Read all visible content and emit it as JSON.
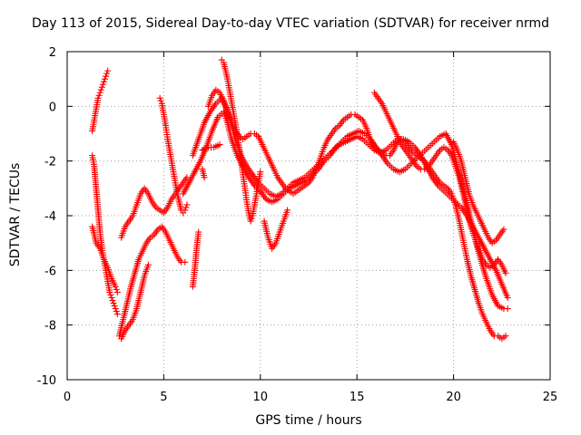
{
  "chart_data": {
    "type": "scatter",
    "title": "Day 113 of 2015, Sidereal Day-to-day VTEC variation (SDTVAR) for receiver nrmd",
    "xlabel": "GPS time / hours",
    "ylabel": "SDTVAR / TECUs",
    "xlim": [
      0,
      25
    ],
    "ylim": [
      -10,
      2
    ],
    "x_ticks": [
      0,
      5,
      10,
      15,
      20,
      25
    ],
    "y_ticks": [
      -10,
      -8,
      -6,
      -4,
      -2,
      0,
      2
    ],
    "grid": true,
    "marker": "+",
    "color": "#ff0000",
    "series": [
      {
        "x": [
          1.3,
          1.4,
          1.5,
          1.6,
          1.7,
          1.8,
          1.9,
          2.0,
          2.1
        ],
        "y": [
          -0.9,
          -0.5,
          -0.1,
          0.3,
          0.5,
          0.7,
          0.9,
          1.1,
          1.3
        ]
      },
      {
        "x": [
          1.3,
          1.4,
          1.5,
          1.6,
          1.7,
          1.8,
          1.9,
          2.0,
          2.1,
          2.2,
          2.3,
          2.4,
          2.5,
          2.6
        ],
        "y": [
          -1.8,
          -2.2,
          -3.0,
          -3.8,
          -4.6,
          -5.2,
          -5.6,
          -6.0,
          -6.4,
          -6.8,
          -7.0,
          -7.2,
          -7.4,
          -7.6
        ]
      },
      {
        "x": [
          1.3,
          1.5,
          1.7,
          1.9,
          2.1,
          2.3,
          2.5,
          2.6
        ],
        "y": [
          -4.4,
          -5.0,
          -5.2,
          -5.6,
          -5.9,
          -6.3,
          -6.6,
          -6.8
        ]
      },
      {
        "x": [
          2.7,
          2.9,
          3.1,
          3.3,
          3.5,
          3.7,
          3.9,
          4.1,
          4.3,
          4.5,
          4.7,
          4.9,
          5.1,
          5.3,
          5.5,
          5.7,
          5.9,
          6.1
        ],
        "y": [
          -8.4,
          -7.8,
          -7.2,
          -6.6,
          -6.1,
          -5.6,
          -5.3,
          -5.0,
          -4.8,
          -4.7,
          -4.5,
          -4.4,
          -4.6,
          -4.9,
          -5.2,
          -5.5,
          -5.7,
          -5.7
        ]
      },
      {
        "x": [
          2.8,
          3.0,
          3.2,
          3.4,
          3.6,
          3.8,
          4.0,
          4.2,
          4.4,
          4.6,
          4.8,
          5.0,
          5.2,
          5.4,
          5.6,
          5.8,
          6.0,
          6.2
        ],
        "y": [
          -4.8,
          -4.4,
          -4.2,
          -4.0,
          -3.6,
          -3.2,
          -3.0,
          -3.2,
          -3.5,
          -3.7,
          -3.8,
          -3.9,
          -3.7,
          -3.4,
          -3.2,
          -3.0,
          -2.8,
          -2.6
        ]
      },
      {
        "x": [
          2.8,
          3.0,
          3.2,
          3.4,
          3.6,
          3.8,
          4.0,
          4.2
        ],
        "y": [
          -8.5,
          -8.2,
          -8.0,
          -7.8,
          -7.4,
          -6.8,
          -6.2,
          -5.8
        ]
      },
      {
        "x": [
          4.8,
          4.9,
          5.0,
          5.1,
          5.2,
          5.3,
          5.4,
          5.5,
          5.6,
          5.7,
          5.8,
          5.9,
          6.0,
          6.1,
          6.2
        ],
        "y": [
          0.3,
          0.1,
          -0.3,
          -0.7,
          -1.2,
          -1.6,
          -2.0,
          -2.4,
          -2.8,
          -3.2,
          -3.5,
          -3.8,
          -3.9,
          -3.8,
          -3.6
        ]
      },
      {
        "x": [
          6.5,
          6.6,
          6.7,
          6.8
        ],
        "y": [
          -6.6,
          -6.0,
          -5.2,
          -4.6
        ]
      },
      {
        "x": [
          6.5,
          6.8,
          7.1,
          7.4,
          7.7,
          8.0,
          8.2,
          8.4,
          8.6,
          8.8,
          9.0,
          9.3,
          9.6,
          9.9,
          10.2,
          10.5,
          10.8,
          11.1,
          11.4,
          11.7,
          12.0,
          12.3,
          12.6,
          12.9,
          13.2,
          13.5,
          13.8,
          14.1,
          14.4,
          14.7,
          15.0,
          15.3,
          15.6,
          15.9,
          16.2,
          16.5,
          16.8,
          17.1,
          17.4,
          17.7,
          18.0,
          18.3,
          18.6,
          18.9,
          19.2,
          19.5,
          19.8,
          20.1,
          20.4,
          20.7,
          21.0,
          21.3,
          21.6,
          21.9,
          22.2,
          22.5,
          22.8
        ],
        "y": [
          -1.8,
          -1.2,
          -0.6,
          -0.2,
          0.1,
          0.3,
          0.0,
          -0.4,
          -0.9,
          -1.4,
          -1.8,
          -2.2,
          -2.5,
          -2.8,
          -3.0,
          -3.2,
          -3.3,
          -3.2,
          -3.0,
          -2.8,
          -2.7,
          -2.6,
          -2.4,
          -2.2,
          -2.0,
          -1.8,
          -1.6,
          -1.4,
          -1.3,
          -1.2,
          -1.1,
          -1.2,
          -1.4,
          -1.6,
          -1.7,
          -1.6,
          -1.4,
          -1.2,
          -1.2,
          -1.3,
          -1.5,
          -1.8,
          -2.2,
          -2.6,
          -2.9,
          -3.1,
          -3.3,
          -3.5,
          -3.7,
          -4.0,
          -4.4,
          -4.8,
          -5.2,
          -5.6,
          -6.0,
          -6.5,
          -7.0
        ]
      },
      {
        "x": [
          6.0,
          6.3,
          6.6,
          6.9,
          7.2,
          7.5,
          7.8,
          8.1,
          8.3,
          8.5,
          8.8,
          9.1,
          9.4,
          9.7,
          10.0,
          10.3,
          10.6,
          10.9,
          11.2,
          11.5,
          11.8,
          12.1,
          12.4,
          12.7,
          13.0,
          13.3,
          13.6,
          13.9,
          14.2,
          14.5,
          14.8,
          15.1,
          15.4,
          15.7,
          16.0,
          16.3,
          16.6,
          16.9,
          17.2,
          17.5,
          17.8,
          18.1,
          18.4,
          18.7,
          19.0,
          19.3,
          19.6,
          19.9,
          20.2,
          20.5,
          20.8,
          21.1,
          21.4,
          21.7,
          22.0,
          22.3,
          22.6,
          22.8
        ],
        "y": [
          -3.2,
          -2.8,
          -2.4,
          -2.0,
          -1.5,
          -0.9,
          -0.4,
          -0.2,
          -0.6,
          -1.2,
          -1.8,
          -2.2,
          -2.6,
          -2.9,
          -3.1,
          -3.4,
          -3.5,
          -3.4,
          -3.2,
          -3.0,
          -2.9,
          -2.8,
          -2.7,
          -2.5,
          -2.3,
          -2.0,
          -1.8,
          -1.5,
          -1.3,
          -1.1,
          -1.0,
          -0.9,
          -1.0,
          -1.2,
          -1.5,
          -1.8,
          -2.1,
          -2.3,
          -2.4,
          -2.3,
          -2.1,
          -1.9,
          -1.7,
          -1.5,
          -1.3,
          -1.1,
          -1.0,
          -1.4,
          -2.2,
          -3.0,
          -3.9,
          -4.8,
          -5.6,
          -6.3,
          -6.9,
          -7.3,
          -7.4,
          -7.4
        ]
      },
      {
        "x": [
          7.3,
          7.5,
          7.7,
          7.9,
          8.1,
          8.3,
          8.5,
          8.7,
          8.9,
          9.1,
          9.3,
          9.5,
          9.7,
          9.9,
          10.1,
          10.3,
          10.5,
          10.7,
          10.9,
          11.1,
          11.3,
          11.5,
          11.7,
          11.9,
          12.1,
          12.3,
          12.5,
          12.7,
          12.9,
          13.1,
          13.3,
          13.5,
          13.7,
          13.9,
          14.1,
          14.3,
          14.5,
          14.7,
          14.9,
          15.1,
          15.3,
          15.5,
          15.7,
          15.9,
          16.1,
          16.3,
          16.5,
          16.7,
          16.9,
          17.1,
          17.3,
          17.5,
          17.7,
          17.9,
          18.1,
          18.3,
          18.5,
          18.7,
          18.9,
          19.1,
          19.3,
          19.5,
          19.7,
          19.9,
          20.1,
          20.3,
          20.5,
          20.7,
          20.9,
          21.1,
          21.3,
          21.5,
          21.7,
          21.9,
          22.1,
          22.3,
          22.5,
          22.7
        ],
        "y": [
          0.0,
          0.4,
          0.6,
          0.5,
          0.2,
          -0.2,
          -0.6,
          -0.9,
          -1.1,
          -1.2,
          -1.1,
          -1.0,
          -1.0,
          -1.1,
          -1.4,
          -1.7,
          -2.0,
          -2.3,
          -2.6,
          -2.8,
          -3.0,
          -3.1,
          -3.2,
          -3.1,
          -3.0,
          -2.9,
          -2.8,
          -2.6,
          -2.3,
          -1.9,
          -1.5,
          -1.2,
          -1.0,
          -0.8,
          -0.7,
          -0.5,
          -0.4,
          -0.3,
          -0.3,
          -0.4,
          -0.5,
          -0.8,
          -1.2,
          -1.5,
          -1.6,
          -1.7,
          -1.8,
          -1.8,
          -1.6,
          -1.3,
          -1.2,
          -1.3,
          -1.5,
          -1.7,
          -1.8,
          -1.9,
          -2.0,
          -2.2,
          -2.4,
          -2.6,
          -2.8,
          -2.9,
          -3.0,
          -3.2,
          -3.6,
          -4.2,
          -4.9,
          -5.6,
          -6.2,
          -6.7,
          -7.2,
          -7.6,
          -7.9,
          -8.2,
          -8.4,
          -8.4,
          -8.5,
          -8.4
        ]
      },
      {
        "x": [
          8.0,
          8.1,
          8.2,
          8.3,
          8.4,
          8.5,
          8.6,
          8.7,
          8.8,
          8.9,
          9.0,
          9.1,
          9.2,
          9.3,
          9.4,
          9.5,
          9.6,
          9.7,
          9.8,
          9.9,
          10.0
        ],
        "y": [
          1.7,
          1.6,
          1.3,
          1.0,
          0.6,
          0.2,
          -0.2,
          -0.6,
          -1.0,
          -1.5,
          -2.0,
          -2.5,
          -3.0,
          -3.5,
          -3.9,
          -4.2,
          -4.0,
          -3.6,
          -3.2,
          -2.8,
          -2.4
        ]
      },
      {
        "x": [
          15.9,
          16.1,
          16.3,
          16.5,
          16.7,
          16.9,
          17.1,
          17.3,
          17.5,
          17.7,
          17.9,
          18.1,
          18.3,
          18.5,
          18.7,
          18.9,
          19.1,
          19.3,
          19.5,
          19.7,
          19.9,
          20.1,
          20.3,
          20.5,
          20.7,
          20.9,
          21.1,
          21.3,
          21.5,
          21.7,
          21.9,
          22.1,
          22.3,
          22.5,
          22.7
        ],
        "y": [
          0.5,
          0.3,
          0.1,
          -0.2,
          -0.5,
          -0.8,
          -1.1,
          -1.4,
          -1.6,
          -1.8,
          -2.0,
          -2.2,
          -2.3,
          -2.3,
          -2.2,
          -2.0,
          -1.8,
          -1.6,
          -1.5,
          -1.6,
          -1.8,
          -2.2,
          -2.6,
          -3.2,
          -3.8,
          -4.4,
          -4.8,
          -5.2,
          -5.6,
          -5.8,
          -5.9,
          -5.8,
          -5.6,
          -5.8,
          -6.1
        ]
      },
      {
        "x": [
          20.0,
          20.2,
          20.4,
          20.6,
          20.8,
          21.0,
          21.2,
          21.4,
          21.6,
          21.8,
          22.0,
          22.2,
          22.4,
          22.6
        ],
        "y": [
          -1.3,
          -1.6,
          -2.0,
          -2.6,
          -3.2,
          -3.6,
          -3.9,
          -4.2,
          -4.5,
          -4.8,
          -5.0,
          -4.9,
          -4.7,
          -4.5
        ]
      },
      {
        "x": [
          10.2,
          10.4,
          10.6,
          10.8,
          11.0,
          11.2,
          11.4
        ],
        "y": [
          -4.2,
          -4.8,
          -5.2,
          -5.0,
          -4.6,
          -4.2,
          -3.8
        ]
      },
      {
        "x": [
          7.0,
          7.3,
          7.6,
          7.9
        ],
        "y": [
          -1.6,
          -1.5,
          -1.5,
          -1.4
        ]
      },
      {
        "x": [
          7.0,
          7.1
        ],
        "y": [
          -2.3,
          -2.6
        ]
      }
    ]
  }
}
